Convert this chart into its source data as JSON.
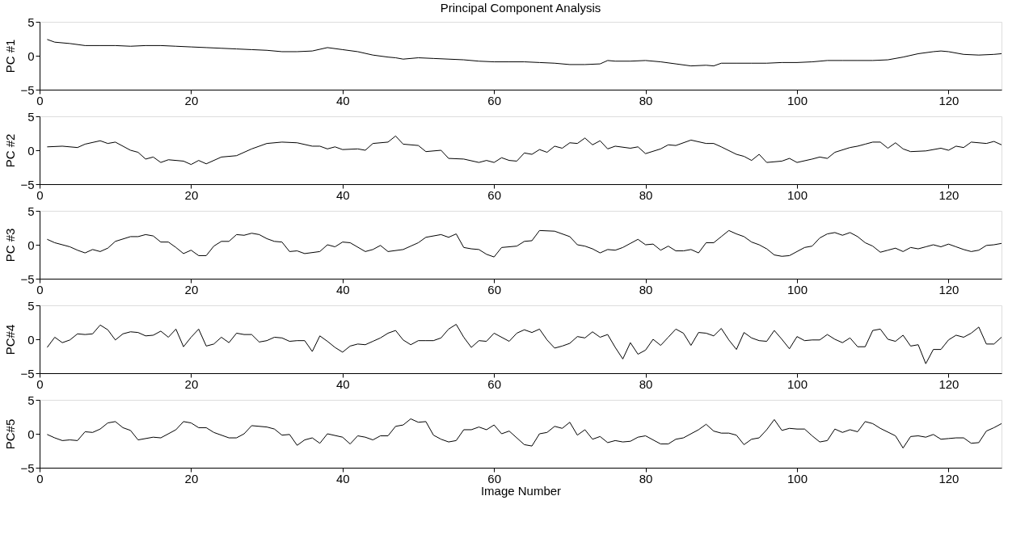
{
  "chart_data": [
    {
      "type": "line",
      "title": "Principal Component Analysis",
      "ylabel": "PC #1",
      "xlim": [
        0,
        127
      ],
      "ylim": [
        -5,
        5
      ],
      "xticks": [
        0,
        20,
        40,
        60,
        80,
        100,
        120
      ],
      "yticks": [
        -5,
        0,
        5
      ],
      "color": "#000000",
      "x": [
        1,
        2,
        4,
        6,
        8,
        10,
        12,
        14,
        16,
        18,
        20,
        22,
        24,
        26,
        28,
        30,
        32,
        34,
        36,
        38,
        40,
        42,
        44,
        46,
        47,
        48,
        50,
        52,
        54,
        56,
        58,
        60,
        62,
        64,
        66,
        68,
        70,
        72,
        74,
        75,
        76,
        78,
        80,
        82,
        84,
        86,
        88,
        89,
        90,
        92,
        94,
        96,
        98,
        100,
        102,
        104,
        106,
        108,
        110,
        112,
        114,
        116,
        118,
        119,
        120,
        122,
        124,
        126,
        127
      ],
      "values": [
        2.4,
        2.0,
        1.8,
        1.5,
        1.5,
        1.5,
        1.4,
        1.5,
        1.5,
        1.4,
        1.3,
        1.2,
        1.1,
        1.0,
        0.9,
        0.8,
        0.6,
        0.6,
        0.7,
        1.2,
        0.9,
        0.6,
        0.1,
        -0.2,
        -0.3,
        -0.5,
        -0.3,
        -0.4,
        -0.5,
        -0.6,
        -0.8,
        -0.9,
        -0.9,
        -0.9,
        -1.0,
        -1.1,
        -1.3,
        -1.3,
        -1.2,
        -0.7,
        -0.8,
        -0.8,
        -0.7,
        -0.9,
        -1.2,
        -1.5,
        -1.4,
        -1.5,
        -1.1,
        -1.1,
        -1.1,
        -1.1,
        -1.0,
        -1.0,
        -0.9,
        -0.7,
        -0.7,
        -0.7,
        -0.7,
        -0.6,
        -0.2,
        0.3,
        0.6,
        0.7,
        0.6,
        0.2,
        0.1,
        0.2,
        0.3
      ]
    },
    {
      "type": "line",
      "ylabel": "PC #2",
      "xlim": [
        0,
        127
      ],
      "ylim": [
        -5,
        5
      ],
      "xticks": [
        0,
        20,
        40,
        60,
        80,
        100,
        120
      ],
      "yticks": [
        -5,
        0,
        5
      ],
      "color": "#000000",
      "x": [
        1,
        3,
        5,
        6,
        8,
        9,
        10,
        12,
        13,
        14,
        15,
        16,
        17,
        19,
        20,
        21,
        22,
        24,
        26,
        28,
        30,
        32,
        34,
        36,
        37,
        38,
        39,
        40,
        42,
        43,
        44,
        46,
        47,
        48,
        50,
        51,
        53,
        54,
        56,
        58,
        59,
        60,
        61,
        62,
        63,
        64,
        65,
        66,
        67,
        68,
        69,
        70,
        71,
        72,
        73,
        74,
        75,
        76,
        78,
        79,
        80,
        82,
        83,
        84,
        86,
        88,
        89,
        90,
        92,
        93,
        94,
        95,
        96,
        98,
        99,
        100,
        102,
        103,
        104,
        105,
        107,
        108,
        109,
        110,
        111,
        112,
        113,
        114,
        115,
        117,
        119,
        120,
        121,
        122,
        123,
        125,
        126,
        127
      ],
      "values": [
        0.5,
        0.6,
        0.4,
        0.9,
        1.4,
        1.0,
        1.2,
        0.0,
        -0.3,
        -1.3,
        -1.0,
        -1.8,
        -1.4,
        -1.6,
        -2.1,
        -1.5,
        -2.0,
        -1.0,
        -0.8,
        0.2,
        1.0,
        1.2,
        1.1,
        0.6,
        0.6,
        0.2,
        0.5,
        0.1,
        0.2,
        0.0,
        1.0,
        1.2,
        2.1,
        0.9,
        0.7,
        -0.2,
        0.0,
        -1.2,
        -1.3,
        -1.8,
        -1.5,
        -1.8,
        -1.1,
        -1.5,
        -1.6,
        -0.4,
        -0.6,
        0.1,
        -0.3,
        0.6,
        0.3,
        1.1,
        1.0,
        1.8,
        0.8,
        1.4,
        0.2,
        0.6,
        0.3,
        0.5,
        -0.5,
        0.2,
        0.8,
        0.7,
        1.5,
        1.0,
        1.0,
        0.5,
        -0.6,
        -0.9,
        -1.5,
        -0.6,
        -1.8,
        -1.6,
        -1.2,
        -1.8,
        -1.3,
        -1.0,
        -1.2,
        -0.3,
        0.4,
        0.6,
        0.9,
        1.2,
        1.2,
        0.3,
        1.1,
        0.2,
        -0.2,
        -0.1,
        0.3,
        0.0,
        0.6,
        0.4,
        1.2,
        1.0,
        1.3,
        0.8
      ]
    },
    {
      "type": "line",
      "ylabel": "PC #3",
      "xlim": [
        0,
        127
      ],
      "ylim": [
        -5,
        5
      ],
      "xticks": [
        0,
        20,
        40,
        60,
        80,
        100,
        120
      ],
      "yticks": [
        -5,
        0,
        5
      ],
      "color": "#000000",
      "x": [
        1,
        2,
        4,
        5,
        6,
        7,
        8,
        9,
        10,
        12,
        13,
        14,
        15,
        16,
        17,
        18,
        19,
        20,
        21,
        22,
        23,
        24,
        25,
        26,
        27,
        28,
        29,
        30,
        31,
        32,
        33,
        34,
        35,
        37,
        38,
        39,
        40,
        41,
        43,
        44,
        45,
        46,
        48,
        49,
        50,
        51,
        53,
        54,
        55,
        56,
        57,
        58,
        59,
        60,
        61,
        63,
        64,
        65,
        66,
        68,
        70,
        71,
        72,
        73,
        74,
        75,
        76,
        77,
        78,
        79,
        80,
        81,
        82,
        83,
        84,
        85,
        86,
        87,
        88,
        89,
        90,
        91,
        92,
        93,
        94,
        95,
        96,
        97,
        98,
        99,
        100,
        101,
        102,
        103,
        104,
        105,
        106,
        107,
        108,
        109,
        110,
        111,
        112,
        113,
        114,
        115,
        116,
        117,
        118,
        119,
        120,
        121,
        122,
        123,
        124,
        125,
        126,
        127
      ],
      "values": [
        0.8,
        0.3,
        -0.3,
        -0.8,
        -1.2,
        -0.7,
        -1.0,
        -0.5,
        0.5,
        1.2,
        1.2,
        1.5,
        1.3,
        0.4,
        0.4,
        -0.4,
        -1.3,
        -0.8,
        -1.6,
        -1.6,
        -0.2,
        0.5,
        0.5,
        1.5,
        1.4,
        1.7,
        1.5,
        0.9,
        0.5,
        0.4,
        -1.0,
        -0.9,
        -1.3,
        -1.0,
        0.0,
        -0.3,
        0.4,
        0.3,
        -1.0,
        -0.7,
        -0.1,
        -1.0,
        -0.7,
        -0.2,
        0.3,
        1.1,
        1.5,
        1.1,
        1.6,
        -0.4,
        -0.6,
        -0.7,
        -1.4,
        -1.8,
        -0.4,
        -0.2,
        0.5,
        0.6,
        2.1,
        2.0,
        1.2,
        0.0,
        -0.2,
        -0.6,
        -1.2,
        -0.7,
        -0.8,
        -0.4,
        0.2,
        0.8,
        0.0,
        0.1,
        -0.8,
        -0.2,
        -0.9,
        -0.9,
        -0.7,
        -1.2,
        0.3,
        0.3,
        1.2,
        2.1,
        1.6,
        1.2,
        0.4,
        0.0,
        -0.6,
        -1.5,
        -1.7,
        -1.6,
        -1.0,
        -0.4,
        -0.2,
        1.0,
        1.6,
        1.8,
        1.4,
        1.8,
        1.2,
        0.3,
        -0.2,
        -1.1,
        -0.8,
        -0.5,
        -1.0,
        -0.4,
        -0.6,
        -0.3,
        0.0,
        -0.3,
        0.1,
        -0.3,
        -0.7,
        -1.0,
        -0.8,
        -0.1,
        0.0,
        0.2
      ]
    },
    {
      "type": "line",
      "ylabel": "PC#4",
      "xlim": [
        0,
        127
      ],
      "ylim": [
        -5,
        5
      ],
      "xticks": [
        0,
        20,
        40,
        60,
        80,
        100,
        120
      ],
      "yticks": [
        -5,
        0,
        5
      ],
      "color": "#000000",
      "x": [
        1,
        2,
        3,
        4,
        5,
        6,
        7,
        8,
        9,
        10,
        11,
        12,
        13,
        14,
        15,
        16,
        17,
        18,
        19,
        20,
        21,
        22,
        23,
        24,
        25,
        26,
        27,
        28,
        29,
        30,
        31,
        32,
        33,
        34,
        35,
        36,
        37,
        38,
        39,
        40,
        41,
        42,
        43,
        44,
        45,
        46,
        47,
        48,
        49,
        50,
        51,
        52,
        53,
        54,
        55,
        56,
        57,
        58,
        59,
        60,
        62,
        63,
        64,
        65,
        66,
        67,
        68,
        69,
        70,
        71,
        72,
        73,
        74,
        75,
        76,
        77,
        78,
        79,
        80,
        81,
        82,
        83,
        84,
        85,
        86,
        87,
        88,
        89,
        90,
        91,
        92,
        93,
        94,
        95,
        96,
        97,
        98,
        99,
        100,
        101,
        102,
        103,
        104,
        105,
        106,
        107,
        108,
        109,
        110,
        111,
        112,
        113,
        114,
        115,
        116,
        117,
        118,
        119,
        120,
        121,
        122,
        123,
        124,
        125,
        126,
        127
      ],
      "values": [
        -1.2,
        0.3,
        -0.5,
        -0.1,
        0.8,
        0.7,
        0.8,
        2.1,
        1.4,
        -0.1,
        0.8,
        1.1,
        1.0,
        0.5,
        0.6,
        1.2,
        0.3,
        1.5,
        -1.1,
        0.3,
        1.5,
        -1.0,
        -0.7,
        0.3,
        -0.5,
        0.9,
        0.7,
        0.7,
        -0.4,
        -0.2,
        0.3,
        0.2,
        -0.3,
        -0.2,
        -0.2,
        -1.8,
        0.5,
        -0.3,
        -1.2,
        -1.9,
        -1.0,
        -0.7,
        -0.8,
        -0.3,
        0.2,
        0.9,
        1.3,
        -0.1,
        -0.8,
        -0.2,
        -0.2,
        -0.2,
        0.2,
        1.5,
        2.2,
        0.3,
        -1.2,
        -0.2,
        -0.3,
        0.9,
        -0.3,
        0.9,
        1.4,
        1.0,
        1.5,
        -0.1,
        -1.3,
        -1.0,
        -0.6,
        0.4,
        0.2,
        1.1,
        0.3,
        0.7,
        -1.2,
        -2.9,
        -0.5,
        -2.2,
        -1.6,
        0.0,
        -0.9,
        0.3,
        1.5,
        0.9,
        -0.9,
        1.0,
        0.9,
        0.5,
        1.6,
        -0.1,
        -1.5,
        1.0,
        0.2,
        -0.2,
        -0.3,
        1.3,
        0.0,
        -1.4,
        0.4,
        -0.2,
        -0.1,
        -0.1,
        0.7,
        0.0,
        -0.5,
        0.2,
        -1.1,
        -1.1,
        1.3,
        1.5,
        0.0,
        -0.3,
        0.6,
        -1.0,
        -0.8,
        -3.6,
        -1.5,
        -1.5,
        -0.1,
        0.6,
        0.3,
        0.9,
        1.8,
        -0.7,
        -0.7,
        0.3
      ]
    },
    {
      "type": "line",
      "ylabel": "PC#5",
      "xlabel": "Image Number",
      "xlim": [
        0,
        127
      ],
      "ylim": [
        -5,
        5
      ],
      "xticks": [
        0,
        20,
        40,
        60,
        80,
        100,
        120
      ],
      "yticks": [
        -5,
        0,
        5
      ],
      "color": "#000000",
      "x": [
        1,
        2,
        3,
        4,
        5,
        6,
        7,
        8,
        9,
        10,
        11,
        12,
        13,
        15,
        16,
        18,
        19,
        20,
        21,
        22,
        23,
        25,
        26,
        27,
        28,
        30,
        31,
        32,
        33,
        34,
        35,
        36,
        37,
        38,
        40,
        41,
        42,
        43,
        44,
        45,
        46,
        47,
        48,
        49,
        50,
        51,
        52,
        53,
        54,
        55,
        56,
        57,
        58,
        59,
        60,
        61,
        62,
        64,
        65,
        66,
        67,
        68,
        69,
        70,
        71,
        72,
        73,
        74,
        75,
        76,
        77,
        78,
        79,
        80,
        82,
        83,
        84,
        85,
        87,
        88,
        89,
        90,
        91,
        92,
        93,
        94,
        95,
        96,
        97,
        98,
        99,
        100,
        101,
        102,
        103,
        104,
        105,
        106,
        107,
        108,
        109,
        110,
        111,
        113,
        114,
        115,
        116,
        117,
        118,
        119,
        120,
        121,
        122,
        123,
        124,
        125,
        126,
        127
      ],
      "values": [
        -0.1,
        -0.6,
        -1.0,
        -0.9,
        -1.0,
        0.3,
        0.2,
        0.7,
        1.6,
        1.8,
        0.9,
        0.5,
        -0.9,
        -0.5,
        -0.6,
        0.6,
        1.8,
        1.6,
        0.9,
        0.9,
        0.2,
        -0.6,
        -0.6,
        0.0,
        1.2,
        1.0,
        0.7,
        -0.2,
        -0.1,
        -1.7,
        -0.9,
        -0.6,
        -1.4,
        0.0,
        -0.5,
        -1.5,
        -0.3,
        -0.5,
        -0.9,
        -0.3,
        -0.3,
        1.1,
        1.3,
        2.2,
        1.7,
        1.8,
        -0.2,
        -0.8,
        -1.2,
        -1.0,
        0.6,
        0.6,
        1.0,
        0.6,
        1.3,
        0.0,
        0.4,
        -1.6,
        -1.8,
        0.0,
        0.2,
        1.1,
        0.8,
        1.7,
        -0.2,
        0.6,
        -0.8,
        -0.4,
        -1.3,
        -1.0,
        -1.2,
        -1.1,
        -0.5,
        -0.3,
        -1.5,
        -1.5,
        -0.8,
        -0.6,
        0.6,
        1.4,
        0.4,
        0.1,
        0.1,
        -0.2,
        -1.6,
        -0.8,
        -0.6,
        0.6,
        2.1,
        0.5,
        0.8,
        0.7,
        0.7,
        -0.3,
        -1.2,
        -1.0,
        0.7,
        0.2,
        0.6,
        0.3,
        1.8,
        1.5,
        0.8,
        -0.3,
        -2.1,
        -0.4,
        -0.3,
        -0.5,
        -0.1,
        -0.8,
        -0.7,
        -0.6,
        -0.6,
        -1.4,
        -1.3,
        0.4,
        0.9,
        1.5
      ]
    }
  ]
}
